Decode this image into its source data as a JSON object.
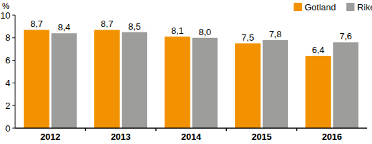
{
  "chart_data": {
    "type": "bar",
    "ylabel": "%",
    "categories": [
      "2012",
      "2013",
      "2014",
      "2015",
      "2016"
    ],
    "series": [
      {
        "name": "Gotland",
        "color": "#f39200",
        "values": [
          8.7,
          8.7,
          8.1,
          7.5,
          6.4
        ],
        "value_labels": [
          "8,7",
          "8,7",
          "8,1",
          "7,5",
          "6,4"
        ]
      },
      {
        "name": "Riket",
        "color": "#9d9d9c",
        "values": [
          8.4,
          8.5,
          8.0,
          7.8,
          7.6
        ],
        "value_labels": [
          "8,4",
          "8,5",
          "8,0",
          "7,8",
          "7,6"
        ]
      }
    ],
    "ylim": [
      0,
      10
    ],
    "yticks": [
      0,
      2,
      4,
      6,
      8,
      10
    ],
    "grid": false,
    "legend": "top-right",
    "data_labels": true
  }
}
